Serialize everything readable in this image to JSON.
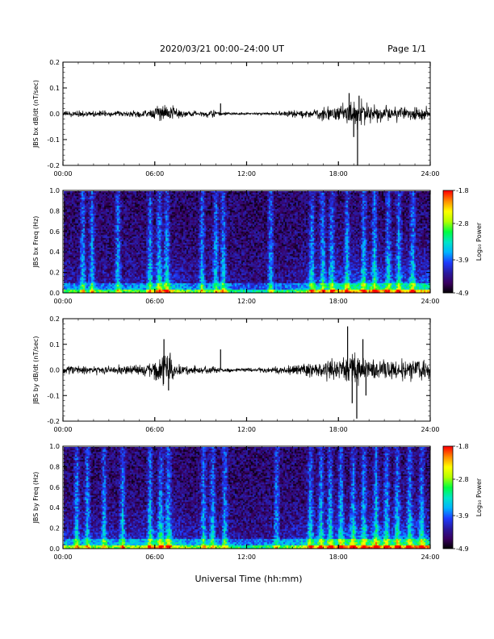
{
  "header": {
    "title": "2020/03/21  00:00–24:00 UT",
    "page": "Page 1/1"
  },
  "xaxis": {
    "label": "Universal Time (hh:mm)",
    "range": [
      0,
      24
    ],
    "ticks": [
      0,
      6,
      12,
      18,
      24
    ],
    "tick_labels": [
      "00:00",
      "06:00",
      "12:00",
      "18:00",
      "24:00"
    ]
  },
  "colorbar": {
    "label": "Log₁₀ Power",
    "ticks": [
      -1.8,
      -2.8,
      -3.9,
      -4.9
    ],
    "tick_labels": [
      "-1.8",
      "-2.8",
      "-3.9",
      "-4.9"
    ],
    "range": [
      -4.9,
      -1.8
    ],
    "colors": [
      "#000000",
      "#3a0060",
      "#2a1aa0",
      "#1e3cff",
      "#00b4ff",
      "#00e6c8",
      "#00ff40",
      "#b4ff00",
      "#ffff00",
      "#ff8c00",
      "#ff0000"
    ]
  },
  "chart_data": [
    {
      "type": "line",
      "ylabel": "JBS bx dB/dt (nT/sec)",
      "ylim": [
        -0.2,
        0.2
      ],
      "yticks": [
        -0.2,
        -0.1,
        0.0,
        0.1,
        0.2
      ],
      "ytick_labels": [
        "-0.2",
        "-0.1",
        "0.0",
        "0.1",
        "0.2"
      ],
      "series_color": "#000000",
      "noise_envelope": {
        "x": [
          0,
          2,
          4,
          5.5,
          6.2,
          6.6,
          7.0,
          7.5,
          8,
          9,
          9.8,
          10.2,
          10.6,
          11,
          12,
          13,
          14,
          15,
          16,
          16.5,
          17,
          18,
          18.6,
          19.0,
          19.3,
          19.6,
          20,
          21,
          22,
          23,
          24
        ],
        "amplitude": [
          0.014,
          0.012,
          0.012,
          0.016,
          0.04,
          0.055,
          0.045,
          0.02,
          0.013,
          0.012,
          0.015,
          0.012,
          0.007,
          0.006,
          0.005,
          0.006,
          0.009,
          0.013,
          0.02,
          0.025,
          0.03,
          0.035,
          0.045,
          0.06,
          0.06,
          0.05,
          0.04,
          0.035,
          0.032,
          0.03,
          0.03
        ]
      },
      "spikes": [
        {
          "x": 10.3,
          "y": 0.04
        },
        {
          "x": 18.7,
          "y": 0.08
        },
        {
          "x": 19.0,
          "y": -0.09
        },
        {
          "x": 19.25,
          "y": -0.2
        },
        {
          "x": 19.35,
          "y": 0.07
        }
      ]
    },
    {
      "type": "heatmap",
      "ylabel": "JBS bx Freq (Hz)",
      "ylim": [
        0,
        1.0
      ],
      "yticks": [
        0,
        0.2,
        0.4,
        0.6,
        0.8,
        1.0
      ],
      "ytick_labels": [
        "0.0",
        "0.2",
        "0.4",
        "0.6",
        "0.8",
        "1.0"
      ],
      "zrange": [
        -4.9,
        -1.8
      ],
      "activity": {
        "x": [
          0,
          2,
          4,
          5.5,
          6,
          6.5,
          7,
          8,
          9,
          10,
          10.3,
          11,
          12,
          13,
          14,
          15,
          16,
          17,
          18,
          19,
          20,
          21,
          22,
          23,
          24
        ],
        "level": [
          0.25,
          0.22,
          0.22,
          0.3,
          0.45,
          0.55,
          0.45,
          0.25,
          0.2,
          0.28,
          0.4,
          0.15,
          0.1,
          0.12,
          0.15,
          0.2,
          0.38,
          0.45,
          0.5,
          0.55,
          0.55,
          0.5,
          0.5,
          0.52,
          0.55
        ]
      },
      "streaks": [
        1.2,
        1.8,
        3.5,
        5.6,
        6.2,
        6.7,
        9.0,
        9.9,
        10.4,
        13.5,
        16.2,
        16.9,
        17.5,
        18.5,
        19.6,
        20.3,
        21.2,
        21.9,
        22.8
      ]
    },
    {
      "type": "line",
      "ylabel": "JBS by dB/dt (nT/sec)",
      "ylim": [
        -0.2,
        0.2
      ],
      "yticks": [
        -0.2,
        -0.1,
        0.0,
        0.1,
        0.2
      ],
      "ytick_labels": [
        "-0.2",
        "-0.1",
        "0.0",
        "0.1",
        "0.2"
      ],
      "series_color": "#000000",
      "noise_envelope": {
        "x": [
          0,
          2,
          4,
          5.5,
          6.2,
          6.6,
          7.0,
          7.5,
          8,
          9,
          10,
          11,
          12,
          13,
          14,
          15,
          16,
          17,
          18,
          18.6,
          19.0,
          19.3,
          19.6,
          20,
          21,
          22,
          23,
          24
        ],
        "amplitude": [
          0.02,
          0.018,
          0.02,
          0.025,
          0.05,
          0.08,
          0.06,
          0.025,
          0.018,
          0.016,
          0.014,
          0.009,
          0.007,
          0.01,
          0.015,
          0.02,
          0.03,
          0.04,
          0.045,
          0.06,
          0.07,
          0.07,
          0.06,
          0.05,
          0.045,
          0.045,
          0.045,
          0.05
        ]
      },
      "spikes": [
        {
          "x": 6.6,
          "y": 0.12
        },
        {
          "x": 6.9,
          "y": -0.08
        },
        {
          "x": 10.3,
          "y": 0.08
        },
        {
          "x": 18.6,
          "y": 0.17
        },
        {
          "x": 18.9,
          "y": -0.13
        },
        {
          "x": 19.2,
          "y": -0.19
        },
        {
          "x": 19.6,
          "y": 0.12
        },
        {
          "x": 19.8,
          "y": -0.1
        }
      ]
    },
    {
      "type": "heatmap",
      "ylabel": "JBS by Freq (Hz)",
      "ylim": [
        0,
        1.0
      ],
      "yticks": [
        0,
        0.2,
        0.4,
        0.6,
        0.8,
        1.0
      ],
      "ytick_labels": [
        "0.0",
        "0.2",
        "0.4",
        "0.6",
        "0.8",
        "1.0"
      ],
      "zrange": [
        -4.9,
        -1.8
      ],
      "activity": {
        "x": [
          0,
          2,
          4,
          5.5,
          6,
          6.5,
          7,
          8,
          9,
          10,
          11,
          12,
          13,
          14,
          15,
          16,
          17,
          18,
          19,
          20,
          21,
          22,
          23,
          24
        ],
        "level": [
          0.35,
          0.32,
          0.32,
          0.4,
          0.55,
          0.6,
          0.5,
          0.3,
          0.28,
          0.3,
          0.2,
          0.15,
          0.18,
          0.22,
          0.3,
          0.45,
          0.5,
          0.55,
          0.6,
          0.62,
          0.58,
          0.56,
          0.6,
          0.62
        ]
      },
      "streaks": [
        0.8,
        1.5,
        2.6,
        3.8,
        5.6,
        6.3,
        6.8,
        9.1,
        9.7,
        10.5,
        13.9,
        16.1,
        16.8,
        17.4,
        18.1,
        18.9,
        19.6,
        20.4,
        21.1,
        21.8,
        22.6,
        23.4
      ]
    }
  ]
}
